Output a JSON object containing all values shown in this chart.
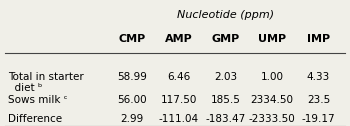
{
  "super_header": "Nucleotide (ppm)",
  "columns": [
    "CMP",
    "AMP",
    "GMP",
    "UMP",
    "IMP"
  ],
  "rows": [
    {
      "label": "Total in starter\n  diet ᵇ",
      "values": [
        "58.99",
        "6.46",
        "2.03",
        "1.00",
        "4.33"
      ]
    },
    {
      "label": "Sows milk ᶜ",
      "values": [
        "56.00",
        "117.50",
        "185.5",
        "2334.50",
        "23.5"
      ]
    },
    {
      "label": "Difference",
      "values": [
        "2.99",
        "-111.04",
        "-183.47",
        "-2333.50",
        "-19.17"
      ]
    }
  ],
  "background_color": "#f0efe8",
  "text_color": "#000000",
  "font_size": 7.5,
  "header_font_size": 8.0
}
